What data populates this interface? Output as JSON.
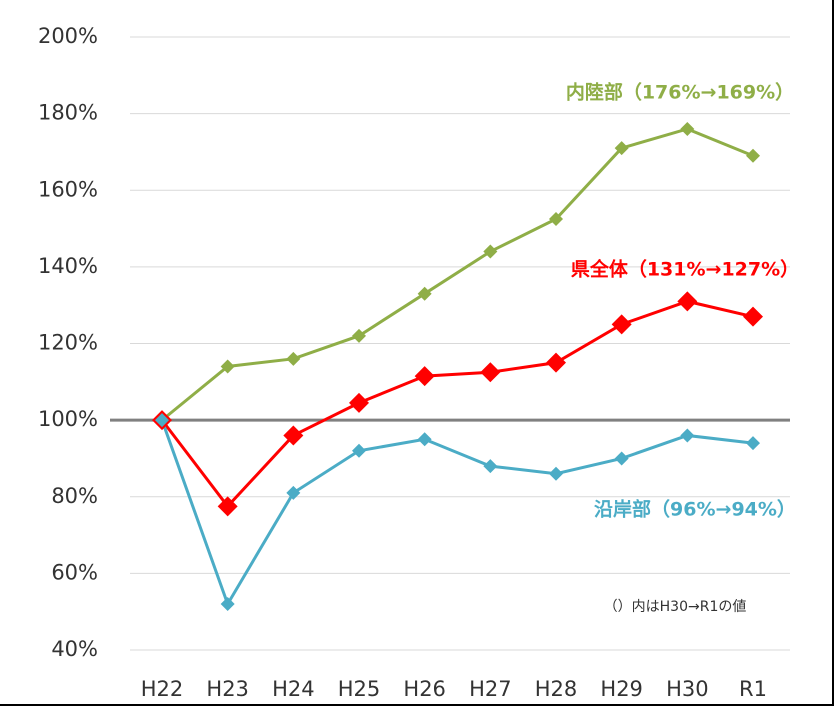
{
  "chart_data": {
    "type": "line",
    "categories": [
      "H22",
      "H23",
      "H24",
      "H25",
      "H26",
      "H27",
      "H28",
      "H29",
      "H30",
      "R1"
    ],
    "series": [
      {
        "name": "内陸部（176%→169%）",
        "color": "#8fae47",
        "marker_size": 7,
        "values": [
          100,
          114,
          116,
          122,
          133,
          144,
          152.5,
          171,
          176,
          169
        ]
      },
      {
        "name": "県全体（131%→127%）",
        "color": "#ff0000",
        "marker_size": 10,
        "values": [
          100,
          77.5,
          96,
          104.5,
          111.5,
          112.5,
          115,
          125,
          131,
          127
        ]
      },
      {
        "name": "沿岸部（96%→94%）",
        "color": "#4bacc6",
        "marker_size": 7,
        "values": [
          100,
          52,
          81,
          92,
          95,
          88,
          86,
          90,
          96,
          94
        ]
      }
    ],
    "annotations": [
      "（）内はH30→R1の値"
    ],
    "ylim": [
      40,
      200
    ],
    "yticks": [
      {
        "value": 40,
        "label": "40%"
      },
      {
        "value": 60,
        "label": "60%"
      },
      {
        "value": 80,
        "label": "80%"
      },
      {
        "value": 100,
        "label": "100%"
      },
      {
        "value": 120,
        "label": "120%"
      },
      {
        "value": 140,
        "label": "140%"
      },
      {
        "value": 160,
        "label": "160%"
      },
      {
        "value": 180,
        "label": "180%"
      },
      {
        "value": 200,
        "label": "200%"
      }
    ],
    "reference_line": 100,
    "grid": true
  }
}
